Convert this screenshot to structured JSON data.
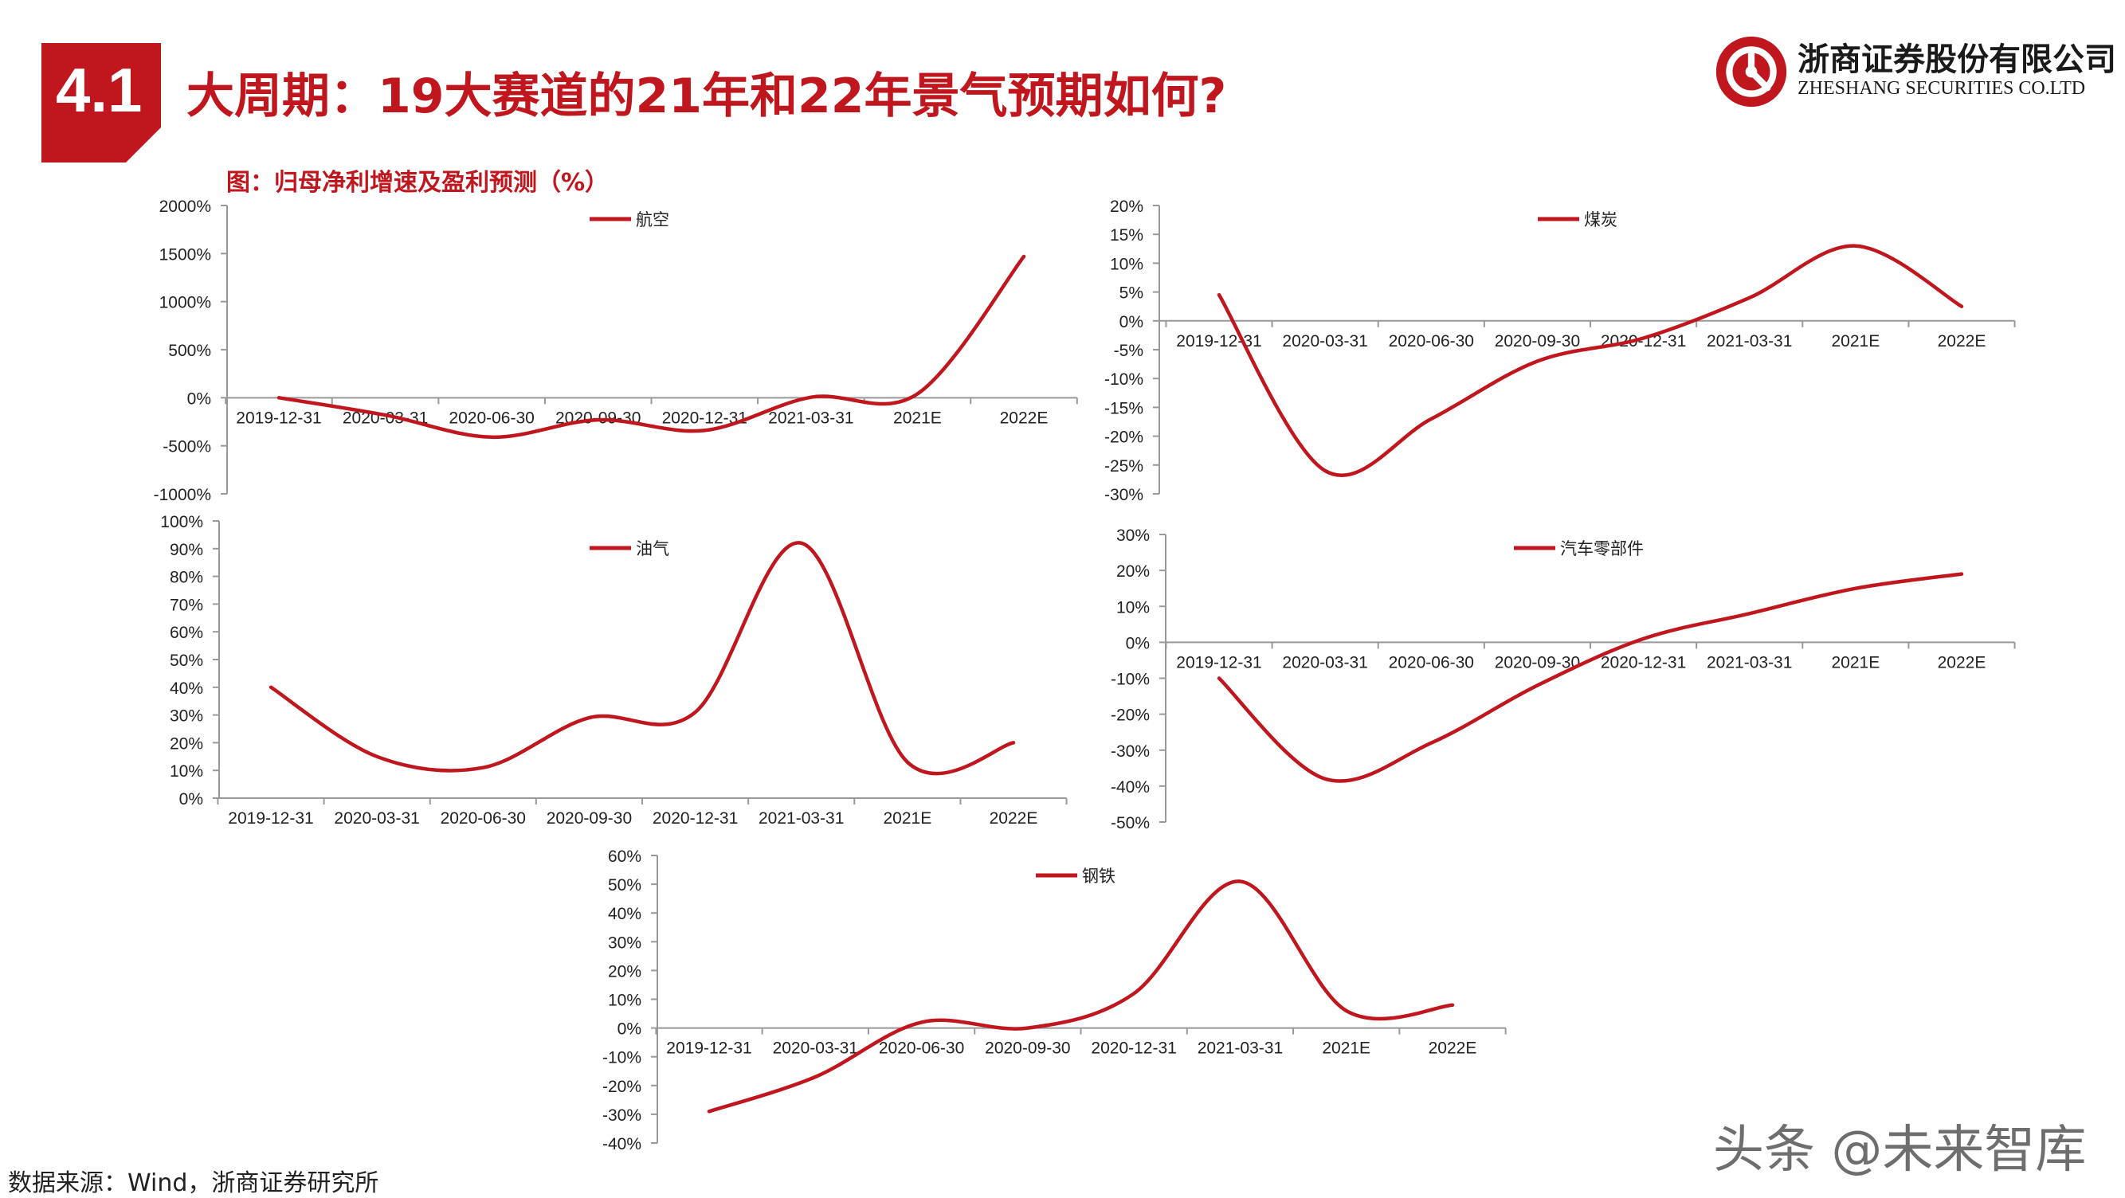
{
  "header": {
    "section_number": "4.1",
    "title": "大周期：19大赛道的21年和22年景气预期如何?"
  },
  "logo": {
    "name_cn": "浙商证券股份有限公司",
    "name_en": "ZHESHANG SECURITIES CO.LTD"
  },
  "figure_caption": "图：归母净利增速及盈利预测（%）",
  "source_note": "数据来源：Wind，浙商证券研究所",
  "watermark": "头条 @未来智库",
  "colors": {
    "accent": "#c0161d",
    "line": "#c0161d",
    "axis": "#999999",
    "text": "#222222"
  },
  "chart_data": [
    {
      "type": "line",
      "categories": [
        "2019-12-31",
        "2020-03-31",
        "2020-06-30",
        "2020-09-30",
        "2020-12-31",
        "2021-03-31",
        "2021E",
        "2022E"
      ],
      "series": [
        {
          "name": "航空",
          "values": [
            0,
            -180,
            -410,
            -230,
            -340,
            5,
            40,
            1470
          ]
        }
      ],
      "ylim": [
        -1000,
        2000
      ],
      "yticks": [
        2000,
        1500,
        1000,
        500,
        0,
        -500,
        -1000
      ],
      "ytick_labels": [
        "2000%",
        "1500%",
        "1000%",
        "500%",
        "0%",
        "-500%",
        "-1000%"
      ],
      "legend_position": "top-left"
    },
    {
      "type": "line",
      "categories": [
        "2019-12-31",
        "2020-03-31",
        "2020-06-30",
        "2020-09-30",
        "2020-12-31",
        "2021-03-31",
        "2021E",
        "2022E"
      ],
      "series": [
        {
          "name": "煤炭",
          "values": [
            4.5,
            -26,
            -17,
            -7,
            -3,
            4,
            13,
            2.5
          ]
        }
      ],
      "ylim": [
        -30,
        20
      ],
      "yticks": [
        20,
        15,
        10,
        5,
        0,
        -5,
        -10,
        -15,
        -20,
        -25,
        -30
      ],
      "ytick_labels": [
        "20%",
        "15%",
        "10%",
        "5%",
        "0%",
        "-5%",
        "-10%",
        "-15%",
        "-20%",
        "-25%",
        "-30%"
      ],
      "legend_position": "top-left"
    },
    {
      "type": "line",
      "categories": [
        "2019-12-31",
        "2020-03-31",
        "2020-06-30",
        "2020-09-30",
        "2020-12-31",
        "2021-03-31",
        "2021E",
        "2022E"
      ],
      "series": [
        {
          "name": "油气",
          "values": [
            40,
            15,
            11,
            29,
            31,
            92,
            13,
            20
          ]
        }
      ],
      "ylim": [
        0,
        100
      ],
      "yticks": [
        100,
        90,
        80,
        70,
        60,
        50,
        40,
        30,
        20,
        10,
        0
      ],
      "ytick_labels": [
        "100%",
        "90%",
        "80%",
        "70%",
        "60%",
        "50%",
        "40%",
        "30%",
        "20%",
        "10%",
        "0%"
      ],
      "legend_position": "top-left"
    },
    {
      "type": "line",
      "categories": [
        "2019-12-31",
        "2020-03-31",
        "2020-06-30",
        "2020-09-30",
        "2020-12-31",
        "2021-03-31",
        "2021E",
        "2022E"
      ],
      "series": [
        {
          "name": "汽车零部件",
          "values": [
            -10,
            -38,
            -28,
            -12,
            1,
            8,
            15,
            19
          ]
        }
      ],
      "ylim": [
        -50,
        30
      ],
      "yticks": [
        30,
        20,
        10,
        0,
        -10,
        -20,
        -30,
        -40,
        -50
      ],
      "ytick_labels": [
        "30%",
        "20%",
        "10%",
        "0%",
        "-10%",
        "-20%",
        "-30%",
        "-40%",
        "-50%"
      ],
      "legend_position": "top-left"
    },
    {
      "type": "line",
      "categories": [
        "2019-12-31",
        "2020-03-31",
        "2020-06-30",
        "2020-09-30",
        "2020-12-31",
        "2021-03-31",
        "2021E",
        "2022E"
      ],
      "series": [
        {
          "name": "钢铁",
          "values": [
            -29,
            -17,
            2,
            0,
            12,
            51,
            6,
            8
          ]
        }
      ],
      "ylim": [
        -40,
        60
      ],
      "yticks": [
        60,
        50,
        40,
        30,
        20,
        10,
        0,
        -10,
        -20,
        -30,
        -40
      ],
      "ytick_labels": [
        "60%",
        "50%",
        "40%",
        "30%",
        "20%",
        "10%",
        "0%",
        "-10%",
        "-20%",
        "-30%",
        "-40%"
      ],
      "legend_position": "top-left"
    }
  ]
}
